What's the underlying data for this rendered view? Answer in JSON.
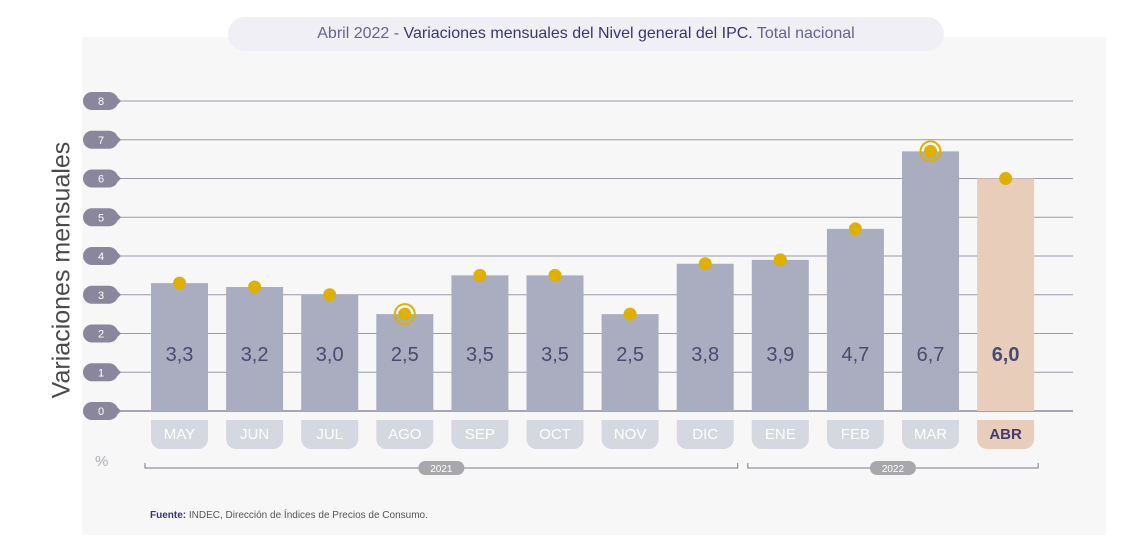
{
  "title": {
    "prefix": "Abril 2022 - ",
    "main": "Variaciones mensuales del Nivel general del IPC.",
    "suffix": " Total nacional"
  },
  "ylabel": "Variaciones mensuales",
  "unit_label": "%",
  "source": {
    "label": "Fuente:",
    "text": " INDEC, Dirección de Índices de Precios de Consumo."
  },
  "colors": {
    "bar": "#a9adbf",
    "highlight": "#e8cdbb",
    "marker": "#e0b000",
    "badge": "#8a869c",
    "text": "#4a4a72"
  },
  "chart_data": {
    "type": "bar",
    "title": "Abril 2022 - Variaciones mensuales del Nivel general del IPC. Total nacional",
    "ylabel": "Variaciones mensuales",
    "ylim": [
      0,
      8
    ],
    "yticks": [
      "0",
      "1",
      "2",
      "3",
      "4",
      "5",
      "6",
      "7",
      "8"
    ],
    "categories": [
      "MAY",
      "JUN",
      "JUL",
      "AGO",
      "SEP",
      "OCT",
      "NOV",
      "DIC",
      "ENE",
      "FEB",
      "MAR",
      "ABR"
    ],
    "values": [
      3.3,
      3.2,
      3.0,
      2.5,
      3.5,
      3.5,
      2.5,
      3.8,
      3.9,
      4.7,
      6.7,
      6.0
    ],
    "labels": [
      "3,3",
      "3,2",
      "3,0",
      "2,5",
      "3,5",
      "3,5",
      "2,5",
      "3,8",
      "3,9",
      "4,7",
      "6,7",
      "6,0"
    ],
    "markers": [
      3.3,
      3.2,
      3.0,
      2.5,
      3.5,
      3.5,
      2.5,
      3.8,
      3.9,
      4.7,
      6.7,
      6.0
    ],
    "ringed": [
      "AGO",
      "MAR"
    ],
    "highlight": "ABR",
    "year_groups": [
      {
        "label": "2021",
        "first": 0,
        "last": 7
      },
      {
        "label": "2022",
        "first": 8,
        "last": 11
      }
    ]
  }
}
